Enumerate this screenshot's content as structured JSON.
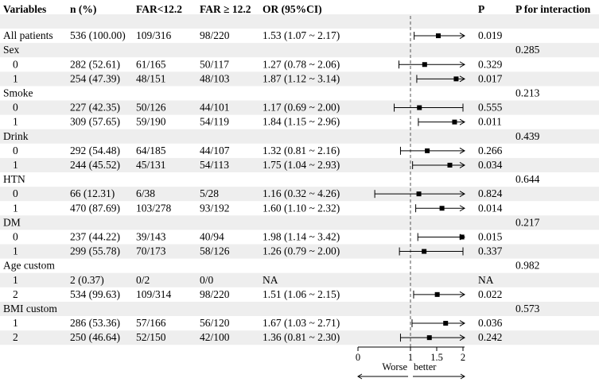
{
  "headers": {
    "variables": "Variables",
    "n": "n (%)",
    "far_low": "FAR<12.2",
    "far_high": "FAR ≥ 12.2",
    "or": "OR (95%CI)",
    "p": "P",
    "p_inter": "P for interaction"
  },
  "rows": [
    {
      "label": "All patients",
      "indent": false,
      "stripe": false
    },
    {
      "label": "Sex",
      "indent": false,
      "stripe": true,
      "p_inter": "0.285"
    },
    {
      "label": "0",
      "indent": true,
      "stripe": false
    },
    {
      "label": "1",
      "indent": true,
      "stripe": true
    },
    {
      "label": "Smoke",
      "indent": false,
      "stripe": false,
      "p_inter": "0.213"
    },
    {
      "label": "0",
      "indent": true,
      "stripe": true
    },
    {
      "label": "1",
      "indent": true,
      "stripe": false
    },
    {
      "label": "Drink",
      "indent": false,
      "stripe": true,
      "p_inter": "0.439"
    },
    {
      "label": "0",
      "indent": true,
      "stripe": false
    },
    {
      "label": "1",
      "indent": true,
      "stripe": true
    },
    {
      "label": "HTN",
      "indent": false,
      "stripe": false,
      "p_inter": "0.644"
    },
    {
      "label": "0",
      "indent": true,
      "stripe": true
    },
    {
      "label": "1",
      "indent": true,
      "stripe": false
    },
    {
      "label": "DM",
      "indent": false,
      "stripe": true,
      "p_inter": "0.217"
    },
    {
      "label": "0",
      "indent": true,
      "stripe": false
    },
    {
      "label": "1",
      "indent": true,
      "stripe": true
    },
    {
      "label": "Age custom",
      "indent": false,
      "stripe": false,
      "p_inter": "0.982"
    },
    {
      "label": "1",
      "indent": true,
      "stripe": true
    },
    {
      "label": "2",
      "indent": true,
      "stripe": false
    },
    {
      "label": "BMI custom",
      "indent": false,
      "stripe": true,
      "p_inter": "0.573"
    },
    {
      "label": "1",
      "indent": true,
      "stripe": false
    },
    {
      "label": "2",
      "indent": true,
      "stripe": true
    }
  ],
  "chart_data": {
    "type": "forest",
    "reference_line": 1,
    "xlim": [
      0,
      2
    ],
    "xticks": [
      "0",
      "1",
      "1.5",
      "2"
    ],
    "xticks_values": [
      0,
      1,
      1.5,
      2
    ],
    "xlabel_left": "Worse",
    "xlabel_right": "better",
    "points": [
      {
        "row": 0,
        "n": "536 (100.00)",
        "far_low": "109/316",
        "far_high": "98/220",
        "or_text": "1.53 (1.07 ~ 2.17)",
        "p": "0.019",
        "or": 1.53,
        "lo": 1.07,
        "hi": 2.17
      },
      {
        "row": 2,
        "n": "282 (52.61)",
        "far_low": "61/165",
        "far_high": "50/117",
        "or_text": "1.27 (0.78 ~ 2.06)",
        "p": "0.329",
        "or": 1.27,
        "lo": 0.78,
        "hi": 2.06
      },
      {
        "row": 3,
        "n": "254 (47.39)",
        "far_low": "48/151",
        "far_high": "48/103",
        "or_text": "1.87 (1.12 ~ 3.14)",
        "p": "0.017",
        "or": 1.87,
        "lo": 1.12,
        "hi": 3.14
      },
      {
        "row": 5,
        "n": "227 (42.35)",
        "far_low": "50/126",
        "far_high": "44/101",
        "or_text": "1.17 (0.69 ~ 2.00)",
        "p": "0.555",
        "or": 1.17,
        "lo": 0.69,
        "hi": 2.0
      },
      {
        "row": 6,
        "n": "309 (57.65)",
        "far_low": "59/190",
        "far_high": "54/119",
        "or_text": "1.84 (1.15 ~ 2.96)",
        "p": "0.011",
        "or": 1.84,
        "lo": 1.15,
        "hi": 2.96
      },
      {
        "row": 8,
        "n": "292 (54.48)",
        "far_low": "64/185",
        "far_high": "44/107",
        "or_text": "1.32 (0.81 ~ 2.16)",
        "p": "0.266",
        "or": 1.32,
        "lo": 0.81,
        "hi": 2.16
      },
      {
        "row": 9,
        "n": "244 (45.52)",
        "far_low": "45/131",
        "far_high": "54/113",
        "or_text": "1.75 (1.04 ~ 2.93)",
        "p": "0.034",
        "or": 1.75,
        "lo": 1.04,
        "hi": 2.93
      },
      {
        "row": 11,
        "n": "66 (12.31)",
        "far_low": "6/38",
        "far_high": "5/28",
        "or_text": "1.16 (0.32 ~ 4.26)",
        "p": "0.824",
        "or": 1.16,
        "lo": 0.32,
        "hi": 4.26
      },
      {
        "row": 12,
        "n": "470 (87.69)",
        "far_low": "103/278",
        "far_high": "93/192",
        "or_text": "1.60 (1.10 ~ 2.32)",
        "p": "0.014",
        "or": 1.6,
        "lo": 1.1,
        "hi": 2.32
      },
      {
        "row": 14,
        "n": "237 (44.22)",
        "far_low": "39/143",
        "far_high": "40/94",
        "or_text": "1.98 (1.14 ~ 3.42)",
        "p": "0.015",
        "or": 1.98,
        "lo": 1.14,
        "hi": 3.42
      },
      {
        "row": 15,
        "n": "299 (55.78)",
        "far_low": "70/173",
        "far_high": "58/126",
        "or_text": "1.26 (0.79 ~ 2.00)",
        "p": "0.337",
        "or": 1.26,
        "lo": 0.79,
        "hi": 2.0
      },
      {
        "row": 17,
        "n": "2 (0.37)",
        "far_low": "0/2",
        "far_high": "0/0",
        "or_text": "NA",
        "p": "NA",
        "or": null,
        "lo": null,
        "hi": null
      },
      {
        "row": 18,
        "n": "534 (99.63)",
        "far_low": "109/314",
        "far_high": "98/220",
        "or_text": "1.51 (1.06 ~ 2.15)",
        "p": "0.022",
        "or": 1.51,
        "lo": 1.06,
        "hi": 2.15
      },
      {
        "row": 20,
        "n": "286 (53.36)",
        "far_low": "57/166",
        "far_high": "56/120",
        "or_text": "1.67 (1.03 ~ 2.71)",
        "p": "0.036",
        "or": 1.67,
        "lo": 1.03,
        "hi": 2.71
      },
      {
        "row": 21,
        "n": "250 (46.64)",
        "far_low": "52/150",
        "far_high": "42/100",
        "or_text": "1.36 (0.81 ~ 2.30)",
        "p": "0.242",
        "or": 1.36,
        "lo": 0.81,
        "hi": 2.3
      }
    ]
  },
  "colors": {
    "stripe": "#eeeeee",
    "ink": "#000000",
    "reference_line": "#555555"
  }
}
